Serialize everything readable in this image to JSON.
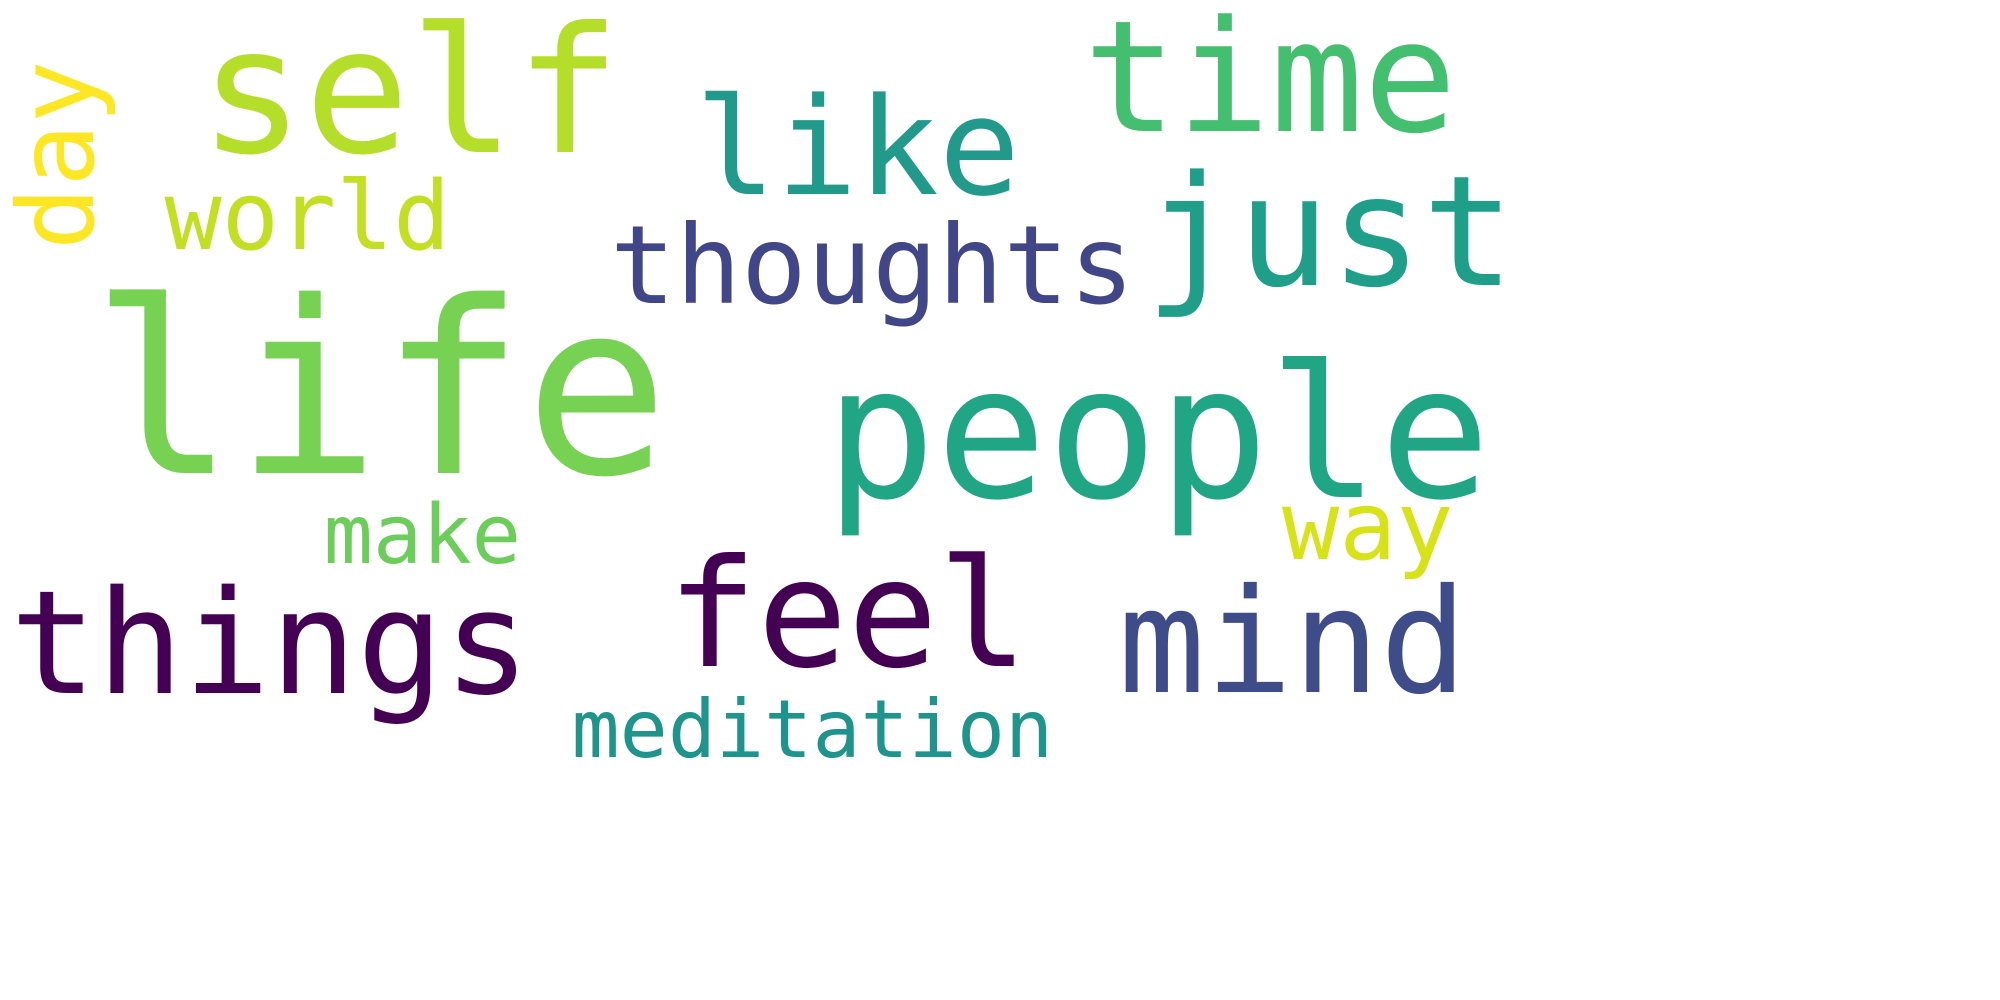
{
  "words": [
    {
      "key": "life",
      "text": "life",
      "color": "#77d153"
    },
    {
      "key": "self",
      "text": "self",
      "color": "#b5de2b"
    },
    {
      "key": "time",
      "text": "time",
      "color": "#44bf70"
    },
    {
      "key": "like",
      "text": "like",
      "color": "#21998b"
    },
    {
      "key": "just",
      "text": "just",
      "color": "#1f9e89"
    },
    {
      "key": "people",
      "text": "people",
      "color": "#21a685"
    },
    {
      "key": "things",
      "text": "things",
      "color": "#440154"
    },
    {
      "key": "feel",
      "text": "feel",
      "color": "#440154"
    },
    {
      "key": "mind",
      "text": "mind",
      "color": "#3e4c8a"
    },
    {
      "key": "thoughts",
      "text": "thoughts",
      "color": "#404688"
    },
    {
      "key": "world",
      "text": "world",
      "color": "#c2df23"
    },
    {
      "key": "day",
      "text": "day",
      "color": "#fde725"
    },
    {
      "key": "make",
      "text": "make",
      "color": "#6ccd5a"
    },
    {
      "key": "way",
      "text": "way",
      "color": "#d8e219"
    },
    {
      "key": "meditation",
      "text": "meditation",
      "color": "#1f948c"
    }
  ]
}
